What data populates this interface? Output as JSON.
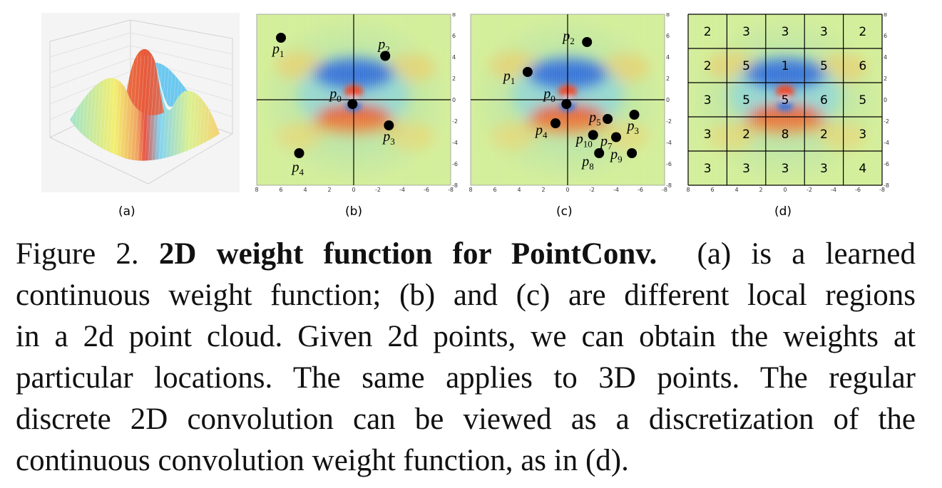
{
  "figure": {
    "panels": [
      {
        "id": "a",
        "label": "(a)"
      },
      {
        "id": "b",
        "label": "(b)",
        "points": [
          {
            "name": "p",
            "sub": "1",
            "x": 6.0,
            "y": 5.8
          },
          {
            "name": "p",
            "sub": "2",
            "x": -2.6,
            "y": 4.1
          },
          {
            "name": "p",
            "sub": "0",
            "x": 0.1,
            "y": -0.4
          },
          {
            "name": "p",
            "sub": "3",
            "x": -2.9,
            "y": -2.4
          },
          {
            "name": "p",
            "sub": "4",
            "x": 4.5,
            "y": -5.0
          }
        ]
      },
      {
        "id": "c",
        "label": "(c)",
        "points": [
          {
            "name": "p",
            "sub": "2",
            "x": -1.6,
            "y": 5.4
          },
          {
            "name": "p",
            "sub": "1",
            "x": 3.3,
            "y": 2.6
          },
          {
            "name": "p",
            "sub": "0",
            "x": 0.1,
            "y": -0.4
          },
          {
            "name": "p",
            "sub": "5",
            "x": -3.3,
            "y": -1.8
          },
          {
            "name": "p",
            "sub": "3",
            "x": -5.5,
            "y": -1.4
          },
          {
            "name": "p",
            "sub": "4",
            "x": 1.0,
            "y": -2.2
          },
          {
            "name": "p",
            "sub": "10",
            "x": -2.1,
            "y": -3.3
          },
          {
            "name": "p",
            "sub": "7",
            "x": -4.0,
            "y": -3.5
          },
          {
            "name": "p",
            "sub": "8",
            "x": -2.6,
            "y": -5.0
          },
          {
            "name": "p",
            "sub": "9",
            "x": -5.3,
            "y": -5.0
          }
        ]
      },
      {
        "id": "d",
        "label": "(d)",
        "grid": [
          [
            "2",
            "3",
            "3",
            "3",
            "2"
          ],
          [
            "2",
            "5",
            "1",
            "5",
            "6"
          ],
          [
            "3",
            "5",
            "5",
            "6",
            "5"
          ],
          [
            "3",
            "2",
            "8",
            "2",
            "3"
          ],
          [
            "3",
            "3",
            "3",
            "3",
            "4"
          ]
        ]
      }
    ],
    "axis_ticks": [
      "8",
      "6",
      "4",
      "2",
      "0",
      "-2",
      "-4",
      "-6",
      "-8"
    ],
    "y_ticks": [
      "8",
      "6",
      "4",
      "2",
      "0",
      "-2",
      "-4",
      "-6",
      "-8"
    ]
  },
  "caption": {
    "prefix": "Figure 2.",
    "title": "2D weight function for PointConv.",
    "line1_rest": "(a) is a learned",
    "line2": "continuous weight function; (b) and (c) are different local regions",
    "line3": "in a 2d point cloud. Given 2d points, we can obtain the weights at",
    "line4": "particular locations. The same applies to 3D points. The regular",
    "line5": "discrete 2D convolution can be viewed as a discretization of the",
    "line6": "continuous convolution weight function, as in (d)."
  },
  "colors": {
    "background": "#ffffff",
    "heat_base": "#c8e8a0",
    "heat_blue": "#2a64d8",
    "heat_red": "#e8361c",
    "heat_orange": "#f2a040",
    "heat_cyan": "#7cd0ea",
    "point": "#000000"
  }
}
